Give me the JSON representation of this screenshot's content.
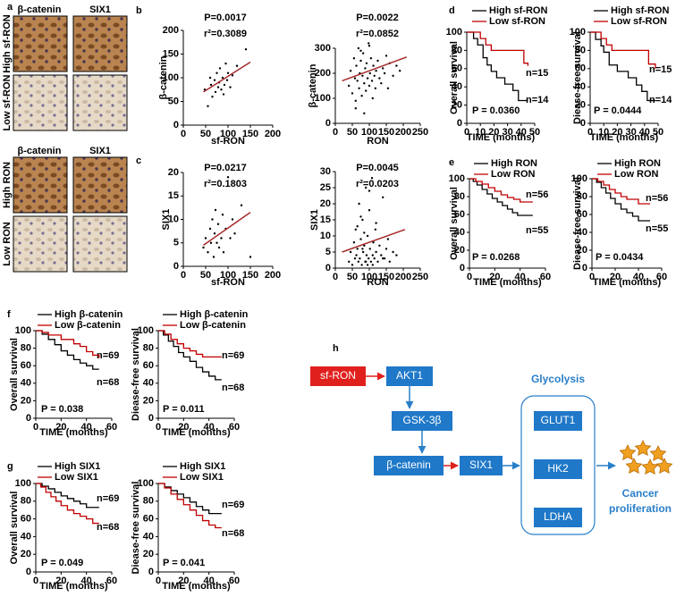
{
  "panels": [
    "a",
    "b",
    "c",
    "d",
    "e",
    "f",
    "g",
    "h"
  ],
  "ihc": {
    "top": {
      "columns": [
        "β-catenin",
        "SIX1"
      ],
      "rows": [
        "High sf-RON",
        "Low sf-RON"
      ]
    },
    "bottom": {
      "columns": [
        "β-catenin",
        "SIX1"
      ],
      "rows": [
        "High RON",
        "Low RON"
      ]
    }
  },
  "chart_data": [
    {
      "type": "scatter",
      "xlabel": "sf-RON",
      "ylabel": "β-catenin",
      "annotations": [
        "P=0.0017",
        "r²=0.3089"
      ],
      "xlim": [
        0,
        200
      ],
      "ylim": [
        0,
        200
      ],
      "xticks": [
        0,
        50,
        100,
        150,
        200
      ],
      "yticks": [
        0,
        50,
        100,
        150,
        200
      ],
      "series": [
        {
          "color": "#000000",
          "x": [
            48,
            55,
            60,
            62,
            65,
            70,
            72,
            75,
            78,
            80,
            82,
            85,
            88,
            90,
            92,
            95,
            98,
            100,
            105,
            110,
            120,
            140
          ],
          "values": [
            75,
            40,
            100,
            85,
            60,
            95,
            70,
            110,
            80,
            90,
            120,
            75,
            100,
            65,
            85,
            130,
            95,
            110,
            80,
            105,
            125,
            160
          ]
        }
      ],
      "fit": {
        "color": "#a52a2a",
        "x": [
          45,
          150
        ],
        "values": [
          70,
          133
        ]
      }
    },
    {
      "type": "scatter",
      "xlabel": "RON",
      "ylabel": "β-catenin",
      "annotations": [
        "P=0.0022",
        "r²=0.0852"
      ],
      "xlim": [
        0,
        250
      ],
      "ylim": [
        0,
        300
      ],
      "xticks": [
        0,
        50,
        100,
        150,
        200,
        250
      ],
      "yticks": [
        0,
        100,
        200,
        300
      ],
      "series": [
        {
          "color": "#000000",
          "x": [
            40,
            45,
            50,
            55,
            58,
            60,
            62,
            65,
            68,
            70,
            72,
            75,
            78,
            80,
            82,
            85,
            88,
            90,
            92,
            95,
            98,
            100,
            102,
            105,
            108,
            110,
            112,
            115,
            118,
            120,
            125,
            130,
            135,
            140,
            145,
            150,
            155,
            160,
            170,
            180,
            190,
            60,
            85,
            100,
            75
          ],
          "values": [
            150,
            210,
            120,
            260,
            180,
            90,
            230,
            170,
            300,
            140,
            200,
            250,
            110,
            190,
            280,
            160,
            220,
            130,
            240,
            180,
            320,
            150,
            200,
            260,
            170,
            100,
            230,
            190,
            140,
            210,
            250,
            180,
            160,
            220,
            200,
            270,
            140,
            240,
            190,
            230,
            210,
            60,
            40,
            310,
            290
          ]
        }
      ],
      "fit": {
        "color": "#a52a2a",
        "x": [
          20,
          210
        ],
        "values": [
          170,
          265
        ]
      }
    },
    {
      "type": "scatter",
      "xlabel": "sf-RON",
      "ylabel": "SIX1",
      "annotations": [
        "P=0.0217",
        "r²=0.1803"
      ],
      "xlim": [
        0,
        200
      ],
      "ylim": [
        0,
        20
      ],
      "xticks": [
        0,
        50,
        100,
        150,
        200
      ],
      "yticks": [
        0,
        5,
        10,
        15,
        20
      ],
      "series": [
        {
          "color": "#000000",
          "x": [
            45,
            50,
            55,
            60,
            62,
            65,
            68,
            70,
            72,
            75,
            78,
            80,
            85,
            88,
            90,
            95,
            100,
            105,
            110,
            115,
            130,
            150
          ],
          "values": [
            4,
            6,
            3,
            8,
            5,
            10,
            2,
            7,
            12,
            5,
            9,
            4,
            6,
            11,
            3,
            8,
            19,
            6,
            10,
            7,
            13,
            2
          ]
        }
      ],
      "fit": {
        "color": "#a52a2a",
        "x": [
          45,
          150
        ],
        "values": [
          4.5,
          11.5
        ]
      }
    },
    {
      "type": "scatter",
      "xlabel": "RON",
      "ylabel": "SIX1",
      "annotations": [
        "P=0.0045",
        "r²=0.0203"
      ],
      "xlim": [
        0,
        250
      ],
      "ylim": [
        0,
        30
      ],
      "xticks": [
        0,
        50,
        100,
        150,
        200,
        250
      ],
      "yticks": [
        0,
        5,
        10,
        15,
        20,
        25,
        30
      ],
      "series": [
        {
          "color": "#000000",
          "x": [
            40,
            45,
            50,
            55,
            58,
            60,
            62,
            65,
            68,
            70,
            72,
            75,
            78,
            80,
            82,
            85,
            88,
            90,
            92,
            95,
            98,
            100,
            102,
            105,
            108,
            110,
            112,
            115,
            118,
            120,
            125,
            130,
            135,
            140,
            145,
            150,
            155,
            160,
            170,
            180,
            75,
            85,
            95,
            65,
            90,
            100,
            110,
            80,
            120,
            140
          ],
          "values": [
            2,
            5,
            1,
            8,
            3,
            12,
            4,
            6,
            2,
            20,
            3,
            9,
            1,
            15,
            5,
            7,
            2,
            25,
            4,
            10,
            3,
            18,
            6,
            2,
            28,
            4,
            8,
            3,
            12,
            5,
            2,
            7,
            4,
            22,
            3,
            6,
            9,
            2,
            5,
            4,
            16,
            11,
            1,
            13,
            2,
            24,
            1,
            6,
            14,
            3
          ]
        }
      ],
      "fit": {
        "color": "#a52a2a",
        "x": [
          20,
          205
        ],
        "values": [
          5,
          12
        ]
      }
    },
    {
      "type": "line",
      "step": true,
      "xlabel": "TIME (months)",
      "ylabel": "Overall survival",
      "annotations": [
        "n=15",
        "n=14",
        "P = 0.0360"
      ],
      "xlim": [
        0,
        50
      ],
      "ylim": [
        0,
        100
      ],
      "xticks": [
        0,
        10,
        20,
        30,
        40,
        50
      ],
      "yticks": [
        0,
        20,
        40,
        60,
        80,
        100
      ],
      "series": [
        {
          "name": "High sf-RON",
          "color": "#000000",
          "x": [
            0,
            5,
            8,
            12,
            15,
            18,
            22,
            28,
            34,
            38,
            45
          ],
          "values": [
            100,
            93,
            86,
            72,
            64,
            57,
            50,
            43,
            36,
            25,
            25
          ]
        },
        {
          "name": "Low sf-RON",
          "color": "#c00000",
          "x": [
            0,
            10,
            14,
            18,
            40,
            42,
            45
          ],
          "values": [
            100,
            93,
            86,
            80,
            80,
            66,
            63
          ]
        }
      ]
    },
    {
      "type": "line",
      "step": true,
      "xlabel": "TIME (months)",
      "ylabel": "Diease-free survival",
      "annotations": [
        "n=15",
        "n=14",
        "P = 0.0444"
      ],
      "xlim": [
        0,
        50
      ],
      "ylim": [
        0,
        100
      ],
      "xticks": [
        0,
        10,
        20,
        30,
        40,
        50
      ],
      "yticks": [
        0,
        20,
        40,
        60,
        80,
        100
      ],
      "series": [
        {
          "name": "High sf-RON",
          "color": "#000000",
          "x": [
            0,
            4,
            8,
            10,
            14,
            20,
            28,
            34,
            38,
            42,
            48
          ],
          "values": [
            100,
            92,
            85,
            78,
            64,
            57,
            50,
            42,
            35,
            25,
            25
          ]
        },
        {
          "name": "Low sf-RON",
          "color": "#c00000",
          "x": [
            0,
            8,
            12,
            16,
            40,
            43,
            48
          ],
          "values": [
            100,
            93,
            86,
            80,
            80,
            65,
            60
          ]
        }
      ]
    },
    {
      "type": "line",
      "step": true,
      "xlabel": "TIME (months)",
      "ylabel": "Overall survival",
      "annotations": [
        "n=56",
        "n=55",
        "P = 0.0268"
      ],
      "xlim": [
        0,
        60
      ],
      "ylim": [
        0,
        100
      ],
      "xticks": [
        0,
        20,
        40,
        60
      ],
      "yticks": [
        0,
        20,
        40,
        60,
        80,
        100
      ],
      "series": [
        {
          "name": "High RON",
          "color": "#000000",
          "x": [
            0,
            3,
            6,
            10,
            14,
            18,
            22,
            26,
            30,
            34,
            38,
            50
          ],
          "values": [
            100,
            97,
            93,
            88,
            83,
            78,
            74,
            70,
            66,
            62,
            59,
            59
          ]
        },
        {
          "name": "Low RON",
          "color": "#c00000",
          "x": [
            0,
            5,
            10,
            15,
            20,
            25,
            30,
            35,
            40,
            50
          ],
          "values": [
            100,
            97,
            94,
            90,
            86,
            82,
            79,
            77,
            74,
            74
          ]
        }
      ]
    },
    {
      "type": "line",
      "step": true,
      "xlabel": "TIME (months)",
      "ylabel": "Diease-free survival",
      "annotations": [
        "n=56",
        "n=55",
        "P = 0.0434"
      ],
      "xlim": [
        0,
        60
      ],
      "ylim": [
        0,
        100
      ],
      "xticks": [
        0,
        20,
        40,
        60
      ],
      "yticks": [
        0,
        20,
        40,
        60,
        80,
        100
      ],
      "series": [
        {
          "name": "High RON",
          "color": "#000000",
          "x": [
            0,
            4,
            8,
            12,
            16,
            20,
            25,
            30,
            35,
            40,
            50
          ],
          "values": [
            100,
            96,
            90,
            84,
            78,
            72,
            66,
            62,
            58,
            53,
            53
          ]
        },
        {
          "name": "Low RON",
          "color": "#c00000",
          "x": [
            0,
            5,
            10,
            15,
            20,
            25,
            30,
            40,
            50
          ],
          "values": [
            100,
            97,
            93,
            88,
            84,
            80,
            77,
            72,
            72
          ]
        }
      ]
    },
    {
      "type": "line",
      "step": true,
      "xlabel": "TIME (months)",
      "ylabel": "Overall survival",
      "annotations": [
        "n=69",
        "n=68",
        "P = 0.038"
      ],
      "xlim": [
        0,
        60
      ],
      "ylim": [
        0,
        100
      ],
      "xticks": [
        0,
        20,
        40,
        60
      ],
      "yticks": [
        0,
        20,
        40,
        60,
        80,
        100
      ],
      "series": [
        {
          "name": "High β-catenin",
          "color": "#000000",
          "x": [
            0,
            5,
            10,
            15,
            20,
            25,
            30,
            35,
            40,
            45,
            50
          ],
          "values": [
            100,
            96,
            90,
            84,
            77,
            72,
            67,
            63,
            60,
            56,
            56
          ]
        },
        {
          "name": "Low β-catenin",
          "color": "#c00000",
          "x": [
            0,
            5,
            10,
            20,
            30,
            35,
            40,
            45,
            50
          ],
          "values": [
            100,
            98,
            95,
            90,
            85,
            82,
            76,
            72,
            69
          ]
        }
      ]
    },
    {
      "type": "line",
      "step": true,
      "xlabel": "TIME (months)",
      "ylabel": "Diease-free survival",
      "annotations": [
        "n=69",
        "n=68",
        "P = 0.011"
      ],
      "xlim": [
        0,
        60
      ],
      "ylim": [
        0,
        100
      ],
      "xticks": [
        0,
        20,
        40,
        60
      ],
      "yticks": [
        0,
        20,
        40,
        60,
        80,
        100
      ],
      "series": [
        {
          "name": "High β-catenin",
          "color": "#000000",
          "x": [
            0,
            4,
            8,
            12,
            16,
            20,
            25,
            30,
            35,
            40,
            45,
            50
          ],
          "values": [
            100,
            95,
            88,
            82,
            75,
            70,
            65,
            58,
            53,
            48,
            44,
            44
          ]
        },
        {
          "name": "Low β-catenin",
          "color": "#c00000",
          "x": [
            0,
            5,
            10,
            15,
            20,
            25,
            30,
            35,
            50
          ],
          "values": [
            100,
            96,
            90,
            85,
            80,
            77,
            73,
            70,
            70
          ]
        }
      ]
    },
    {
      "type": "line",
      "step": true,
      "xlabel": "TIME (months)",
      "ylabel": "Overall survival",
      "annotations": [
        "n=69",
        "n=68",
        "P = 0.049"
      ],
      "xlim": [
        0,
        60
      ],
      "ylim": [
        0,
        100
      ],
      "xticks": [
        0,
        20,
        40,
        60
      ],
      "yticks": [
        0,
        20,
        40,
        60,
        80,
        100
      ],
      "series": [
        {
          "name": "High SIX1",
          "color": "#000000",
          "x": [
            0,
            5,
            10,
            15,
            20,
            25,
            30,
            35,
            40,
            50
          ],
          "values": [
            100,
            97,
            94,
            90,
            86,
            83,
            80,
            77,
            73,
            73
          ]
        },
        {
          "name": "Low SIX1",
          "color": "#c00000",
          "x": [
            0,
            4,
            8,
            12,
            16,
            20,
            25,
            30,
            35,
            40,
            45,
            50
          ],
          "values": [
            100,
            96,
            90,
            85,
            80,
            75,
            70,
            66,
            63,
            60,
            55,
            55
          ]
        }
      ]
    },
    {
      "type": "line",
      "step": true,
      "xlabel": "TIME (months)",
      "ylabel": "Diease-free survival",
      "annotations": [
        "n=69",
        "n=68",
        "P = 0.041"
      ],
      "xlim": [
        0,
        60
      ],
      "ylim": [
        0,
        100
      ],
      "xticks": [
        0,
        20,
        40,
        60
      ],
      "yticks": [
        0,
        20,
        40,
        60,
        80,
        100
      ],
      "series": [
        {
          "name": "High SIX1",
          "color": "#000000",
          "x": [
            0,
            5,
            10,
            15,
            20,
            25,
            30,
            35,
            40,
            50
          ],
          "values": [
            100,
            96,
            92,
            88,
            84,
            79,
            74,
            70,
            66,
            66
          ]
        },
        {
          "name": "Low SIX1",
          "color": "#c00000",
          "x": [
            0,
            5,
            10,
            15,
            20,
            25,
            30,
            35,
            40,
            45,
            50
          ],
          "values": [
            100,
            95,
            88,
            82,
            76,
            70,
            64,
            58,
            53,
            50,
            50
          ]
        }
      ]
    }
  ],
  "diagram": {
    "nodes": [
      "sf-RON",
      "AKT1",
      "GSK-3β",
      "β-catenin",
      "SIX1",
      "GLUT1",
      "HK2",
      "LDHA"
    ],
    "group": "Glycolysis",
    "outcome": [
      "Cancer",
      "proliferation"
    ]
  }
}
